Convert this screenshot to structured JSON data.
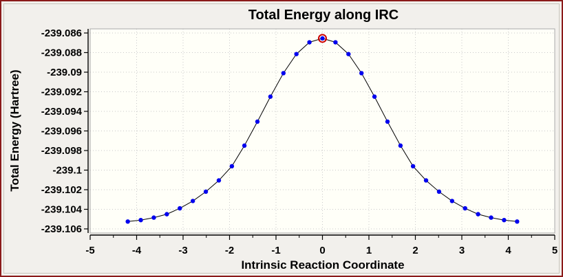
{
  "chart_data": {
    "type": "line",
    "title": "Total Energy along IRC",
    "xlabel": "Intrinsic Reaction Coordinate",
    "ylabel": "Total Energy (Hartree)",
    "xlim": [
      -5,
      5
    ],
    "ylim": [
      -239.106,
      -239.086
    ],
    "xticks": [
      -5,
      -4,
      -3,
      -2,
      -1,
      0,
      1,
      2,
      3,
      4,
      5
    ],
    "xtick_labels": [
      "-5",
      "-4",
      "-3",
      "-2",
      "-1",
      "0",
      "1",
      "2",
      "3",
      "4",
      "5"
    ],
    "yticks": [
      -239.086,
      -239.088,
      -239.09,
      -239.092,
      -239.094,
      -239.096,
      -239.098,
      -239.1,
      -239.102,
      -239.104,
      -239.106
    ],
    "ytick_labels": [
      "-239.086",
      "-239.088",
      "-239.09",
      "-239.092",
      "-239.094",
      "-239.096",
      "-239.098",
      "-239.1",
      "-239.102",
      "-239.104",
      "-239.106"
    ],
    "grid": true,
    "legend": "none",
    "line_color": "#000000",
    "marker_color": "#0000ee",
    "highlight_color": "#cc0000",
    "highlight_index": 15,
    "series": [
      {
        "x": [
          -4.19,
          -3.91,
          -3.63,
          -3.35,
          -3.07,
          -2.79,
          -2.51,
          -2.23,
          -1.95,
          -1.68,
          -1.4,
          -1.12,
          -0.84,
          -0.56,
          -0.28,
          0.0,
          0.28,
          0.56,
          0.84,
          1.12,
          1.4,
          1.68,
          1.95,
          2.23,
          2.51,
          2.79,
          3.07,
          3.35,
          3.63,
          3.91,
          4.19
        ],
        "y": [
          -239.10525,
          -239.1051,
          -239.10485,
          -239.1045,
          -239.1039,
          -239.10315,
          -239.1022,
          -239.10105,
          -239.0996,
          -239.0975,
          -239.09505,
          -239.0925,
          -239.0901,
          -239.08815,
          -239.08695,
          -239.08655,
          -239.08695,
          -239.08815,
          -239.0901,
          -239.0925,
          -239.09505,
          -239.0975,
          -239.0996,
          -239.10105,
          -239.1022,
          -239.10315,
          -239.1039,
          -239.1045,
          -239.10485,
          -239.1051,
          -239.10525
        ]
      }
    ]
  }
}
